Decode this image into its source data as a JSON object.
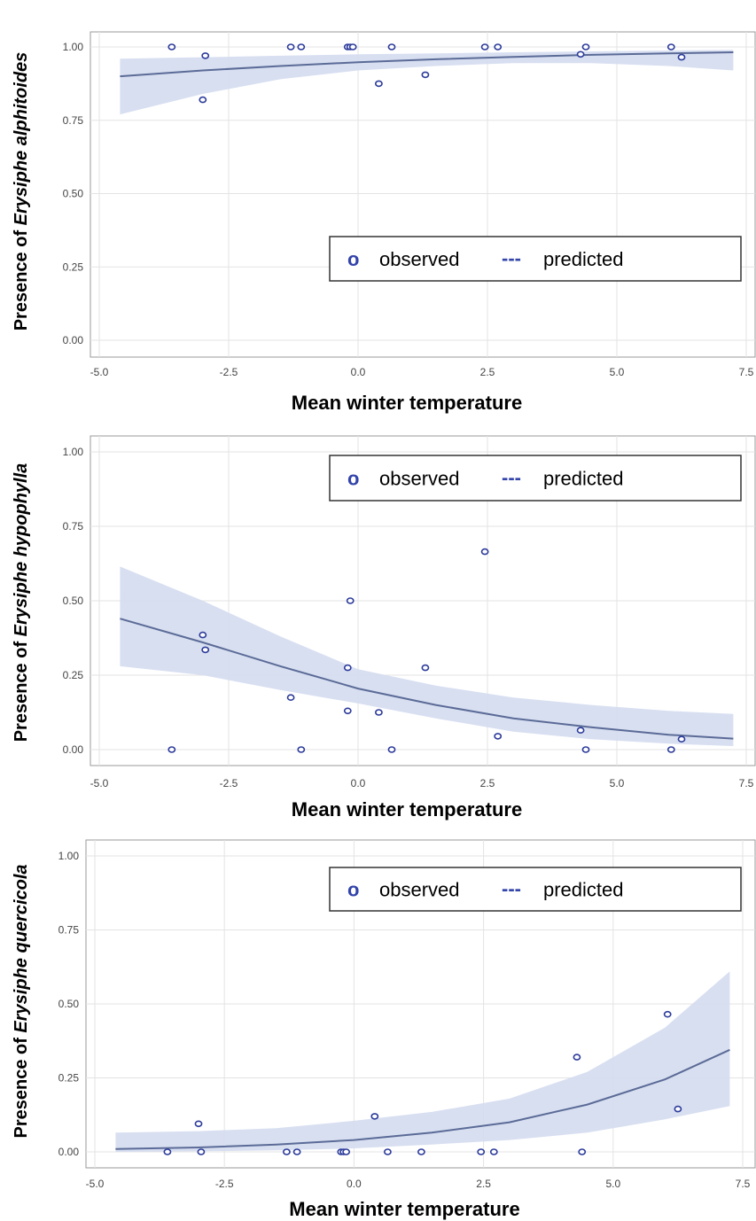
{
  "colors": {
    "band": "#d4dcf0",
    "line": "#5b6b97",
    "marker": "#2b3a9a",
    "grid": "#e3e3e3",
    "frame": "#9a9a9a",
    "legend_line": "#3344aa"
  },
  "chart_data": [
    {
      "type": "line",
      "ylabel_prefix": "Presence of ",
      "ylabel_species": "Erysiphe alphitoides",
      "xlabel": "Mean winter temperature",
      "xlim": [
        -5.0,
        7.5
      ],
      "ylim": [
        0.0,
        1.0
      ],
      "x_ticks": [
        "-5.0",
        "-2.5",
        "0.0",
        "2.5",
        "5.0",
        "7.5"
      ],
      "y_ticks": [
        "0.00",
        "0.25",
        "0.50",
        "0.75",
        "1.00"
      ],
      "grid": true,
      "legend": {
        "position": "center-right",
        "observed_marker": "o",
        "observed_label": "observed",
        "predicted_marker": "---",
        "predicted_label": "predicted"
      },
      "observed": [
        [
          -3.6,
          1.0
        ],
        [
          -3.0,
          0.82
        ],
        [
          -2.95,
          0.97
        ],
        [
          -1.3,
          1.0
        ],
        [
          -1.1,
          1.0
        ],
        [
          -0.2,
          1.0
        ],
        [
          -0.15,
          1.0
        ],
        [
          -0.1,
          1.0
        ],
        [
          0.4,
          0.875
        ],
        [
          0.65,
          1.0
        ],
        [
          1.3,
          0.905
        ],
        [
          2.45,
          1.0
        ],
        [
          2.7,
          1.0
        ],
        [
          4.3,
          0.975
        ],
        [
          4.4,
          1.0
        ],
        [
          6.05,
          1.0
        ],
        [
          6.25,
          0.965
        ]
      ],
      "predicted": {
        "x": [
          -4.6,
          -3.0,
          -1.5,
          0.0,
          1.5,
          3.0,
          4.5,
          6.0,
          7.25
        ],
        "fit": [
          0.9,
          0.92,
          0.935,
          0.948,
          0.958,
          0.966,
          0.973,
          0.978,
          0.982
        ],
        "lower": [
          0.77,
          0.84,
          0.89,
          0.92,
          0.935,
          0.945,
          0.945,
          0.935,
          0.92
        ],
        "upper": [
          0.96,
          0.965,
          0.97,
          0.975,
          0.978,
          0.982,
          0.985,
          0.988,
          0.99
        ]
      }
    },
    {
      "type": "line",
      "ylabel_prefix": "Presence of ",
      "ylabel_species": "Erysiphe hypophylla",
      "xlabel": "Mean winter temperature",
      "xlim": [
        -5.0,
        7.5
      ],
      "ylim": [
        0.0,
        1.0
      ],
      "x_ticks": [
        "-5.0",
        "-2.5",
        "0.0",
        "2.5",
        "5.0",
        "7.5"
      ],
      "y_ticks": [
        "0.00",
        "0.25",
        "0.50",
        "0.75",
        "1.00"
      ],
      "grid": true,
      "legend": {
        "position": "top-right",
        "observed_marker": "o",
        "observed_label": "observed",
        "predicted_marker": "---",
        "predicted_label": "predicted"
      },
      "observed": [
        [
          -3.6,
          0.0
        ],
        [
          -3.0,
          0.385
        ],
        [
          -2.95,
          0.335
        ],
        [
          -1.3,
          0.175
        ],
        [
          -1.1,
          0.0
        ],
        [
          -0.2,
          0.275
        ],
        [
          -0.2,
          0.13
        ],
        [
          -0.15,
          0.5
        ],
        [
          0.4,
          0.125
        ],
        [
          0.65,
          0.0
        ],
        [
          1.3,
          0.275
        ],
        [
          2.45,
          0.665
        ],
        [
          2.7,
          0.045
        ],
        [
          4.3,
          0.065
        ],
        [
          4.4,
          0.0
        ],
        [
          6.05,
          0.0
        ],
        [
          6.25,
          0.035
        ]
      ],
      "predicted": {
        "x": [
          -4.6,
          -3.0,
          -1.5,
          0.0,
          1.5,
          3.0,
          4.5,
          6.0,
          7.25
        ],
        "fit": [
          0.44,
          0.36,
          0.28,
          0.205,
          0.15,
          0.105,
          0.075,
          0.05,
          0.037
        ],
        "lower": [
          0.28,
          0.25,
          0.2,
          0.155,
          0.105,
          0.06,
          0.035,
          0.02,
          0.012
        ],
        "upper": [
          0.615,
          0.5,
          0.38,
          0.27,
          0.215,
          0.175,
          0.15,
          0.13,
          0.12
        ]
      }
    },
    {
      "type": "line",
      "ylabel_prefix": "Presence of ",
      "ylabel_species": "Erysiphe quercicola",
      "xlabel": "Mean winter temperature",
      "xlim": [
        -5.0,
        7.5
      ],
      "ylim": [
        0.0,
        1.0
      ],
      "x_ticks": [
        "-5.0",
        "-2.5",
        "0.0",
        "2.5",
        "5.0",
        "7.5"
      ],
      "y_ticks": [
        "0.00",
        "0.25",
        "0.50",
        "0.75",
        "1.00"
      ],
      "grid": true,
      "legend": {
        "position": "top-right",
        "observed_marker": "o",
        "observed_label": "observed",
        "predicted_marker": "---",
        "predicted_label": "predicted"
      },
      "observed": [
        [
          -3.6,
          0.0
        ],
        [
          -3.0,
          0.095
        ],
        [
          -2.95,
          0.0
        ],
        [
          -1.3,
          0.0
        ],
        [
          -1.1,
          0.0
        ],
        [
          -0.25,
          0.0
        ],
        [
          -0.2,
          0.0
        ],
        [
          -0.15,
          0.0
        ],
        [
          0.4,
          0.12
        ],
        [
          0.65,
          0.0
        ],
        [
          1.3,
          0.0
        ],
        [
          2.45,
          0.0
        ],
        [
          2.7,
          0.0
        ],
        [
          4.3,
          0.32
        ],
        [
          4.4,
          0.0
        ],
        [
          6.05,
          0.465
        ],
        [
          6.25,
          0.145
        ]
      ],
      "predicted": {
        "x": [
          -4.6,
          -3.0,
          -1.5,
          0.0,
          1.5,
          3.0,
          4.5,
          6.0,
          7.25
        ],
        "fit": [
          0.01,
          0.015,
          0.025,
          0.04,
          0.065,
          0.1,
          0.16,
          0.245,
          0.345
        ],
        "lower": [
          0.0,
          0.002,
          0.005,
          0.012,
          0.025,
          0.04,
          0.065,
          0.11,
          0.155
        ],
        "upper": [
          0.065,
          0.07,
          0.08,
          0.105,
          0.135,
          0.18,
          0.27,
          0.42,
          0.61
        ]
      }
    }
  ]
}
